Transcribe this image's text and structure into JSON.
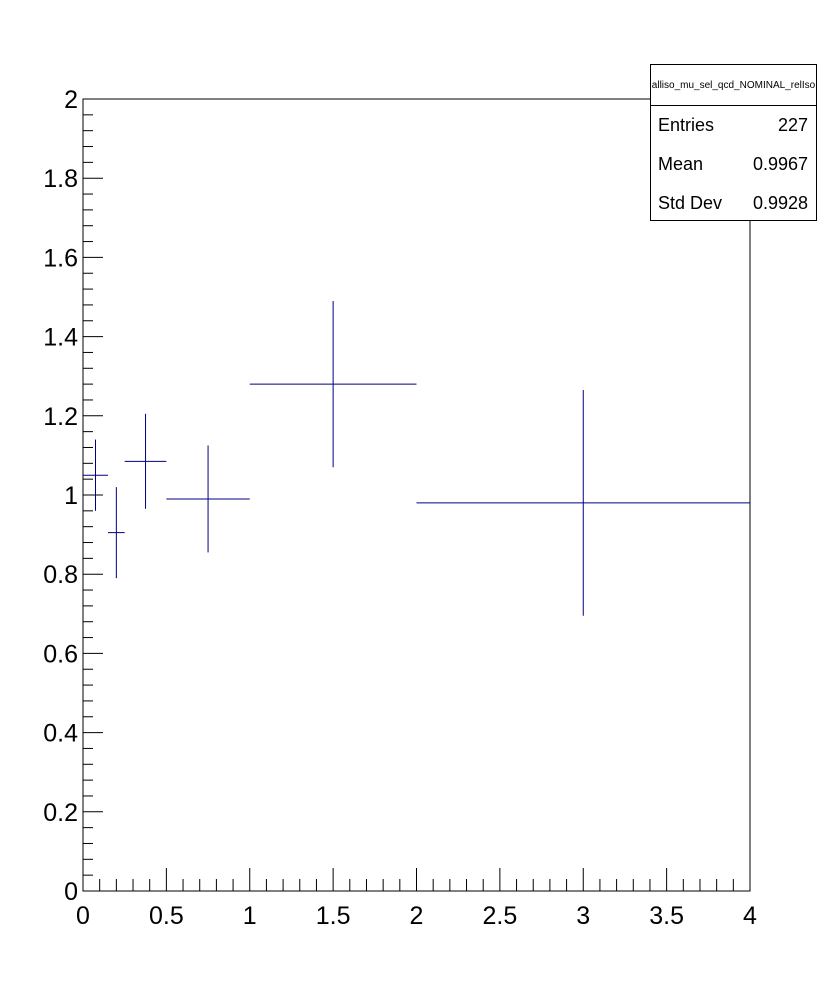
{
  "chart_data": {
    "type": "scatter",
    "title": "",
    "xlabel": "",
    "ylabel": "",
    "xlim": [
      0,
      4
    ],
    "ylim": [
      0,
      2
    ],
    "x_ticks": [
      "0",
      "0.5",
      "1",
      "1.5",
      "2",
      "2.5",
      "3",
      "3.5",
      "4"
    ],
    "y_ticks": [
      "0",
      "0.2",
      "0.4",
      "0.6",
      "0.8",
      "1",
      "1.2",
      "1.4",
      "1.6",
      "1.8",
      "2"
    ],
    "grid": false,
    "series": [
      {
        "color": "#000080",
        "points": [
          {
            "x": 0.075,
            "xerr": 0.075,
            "y": 1.05,
            "yerr": 0.09
          },
          {
            "x": 0.2,
            "xerr": 0.05,
            "y": 0.905,
            "yerr": 0.115
          },
          {
            "x": 0.375,
            "xerr": 0.125,
            "y": 1.085,
            "yerr": 0.12
          },
          {
            "x": 0.75,
            "xerr": 0.25,
            "y": 0.99,
            "yerr": 0.135
          },
          {
            "x": 1.5,
            "xerr": 0.5,
            "y": 1.28,
            "yerr": 0.21
          },
          {
            "x": 3.0,
            "xerr": 1.0,
            "y": 0.98,
            "yerr": 0.285
          }
        ]
      }
    ]
  },
  "stats": {
    "title": "alliso_mu_sel_qcd_NOMINAL_relIso",
    "entries_label": "Entries",
    "entries_value": "227",
    "mean_label": "Mean",
    "mean_value": "0.9967",
    "stddev_label": "Std Dev",
    "stddev_value": "0.9928"
  }
}
